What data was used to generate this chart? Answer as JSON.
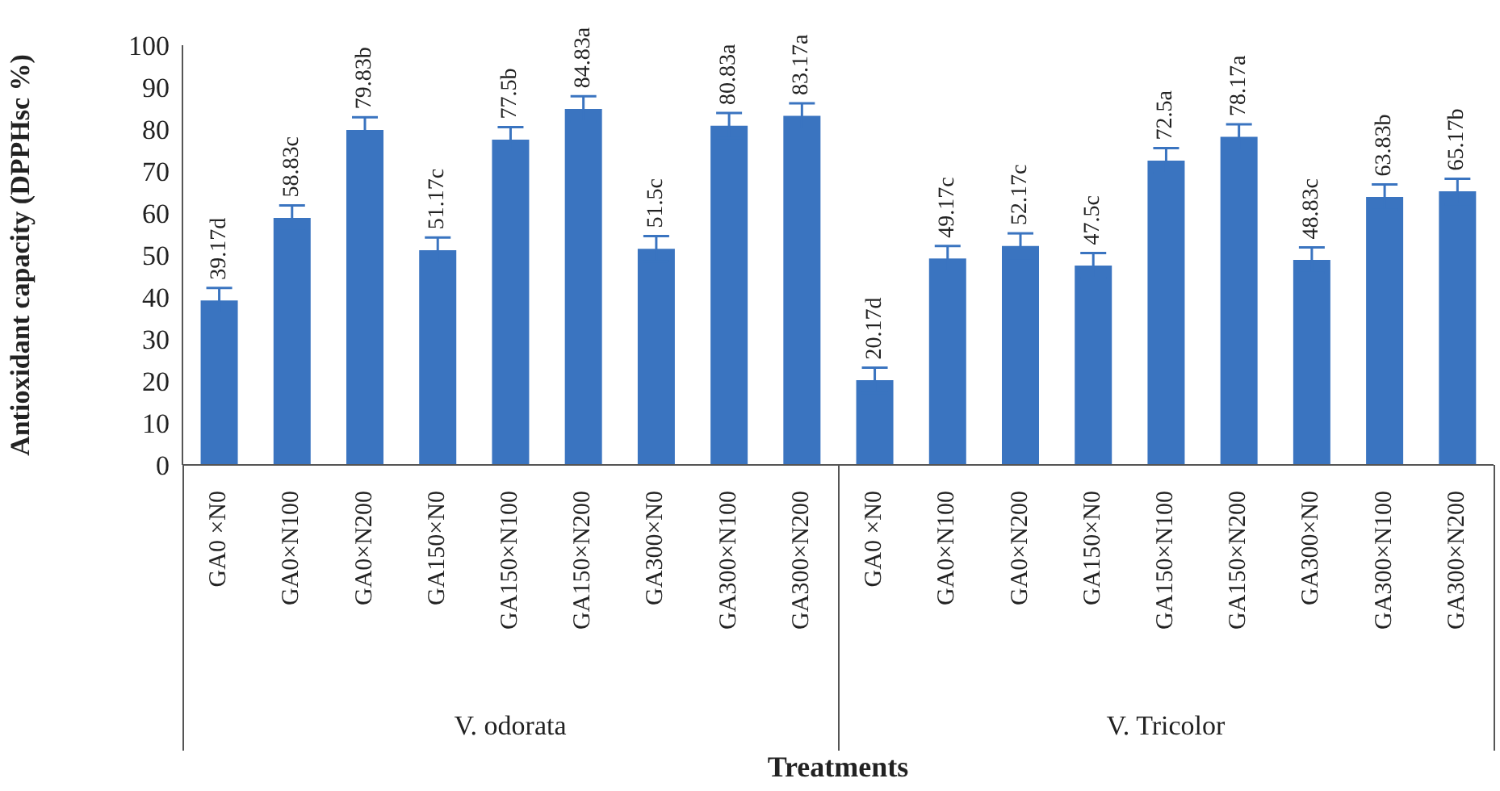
{
  "chart_data": {
    "type": "bar",
    "xlabel": "Treatments",
    "ylabel": "Antioxidant capacity (DPPHsc %)",
    "categories": [
      "GA0 ×N0",
      "GA0×N100",
      "GA0×N200",
      "GA150×N0",
      "GA150×N100",
      "GA150×N200",
      "GA300×N0",
      "GA300×N100",
      "GA300×N200",
      "GA0 ×N0",
      "GA0×N100",
      "GA0×N200",
      "GA150×N0",
      "GA150×N100",
      "GA150×N200",
      "GA300×N0",
      "GA300×N100",
      "GA300×N200"
    ],
    "values": [
      39.17,
      58.83,
      79.83,
      51.17,
      77.5,
      84.83,
      51.5,
      80.83,
      83.17,
      20.17,
      49.17,
      52.17,
      47.5,
      72.5,
      78.17,
      48.83,
      63.83,
      65.17
    ],
    "value_labels": [
      "39.17d",
      "58.83c",
      "79.83b",
      "51.17c",
      "77.5b",
      "84.83a",
      "51.5c",
      "80.83a",
      "83.17a",
      "20.17d",
      "49.17c",
      "52.17c",
      "47.5c",
      "72.5a",
      "78.17a",
      "48.83c",
      "63.83b",
      "65.17b"
    ],
    "errors": [
      3,
      3,
      3,
      3,
      3,
      3,
      3,
      3,
      3,
      3,
      3,
      3,
      3,
      3,
      3,
      3,
      3,
      3
    ],
    "color": "#3a74c0",
    "ylim": [
      0,
      100
    ],
    "yticks": [
      0,
      10,
      20,
      30,
      40,
      50,
      60,
      70,
      80,
      90,
      100
    ],
    "annotations": [
      "V. odorata",
      "V. Tricolor"
    ]
  }
}
